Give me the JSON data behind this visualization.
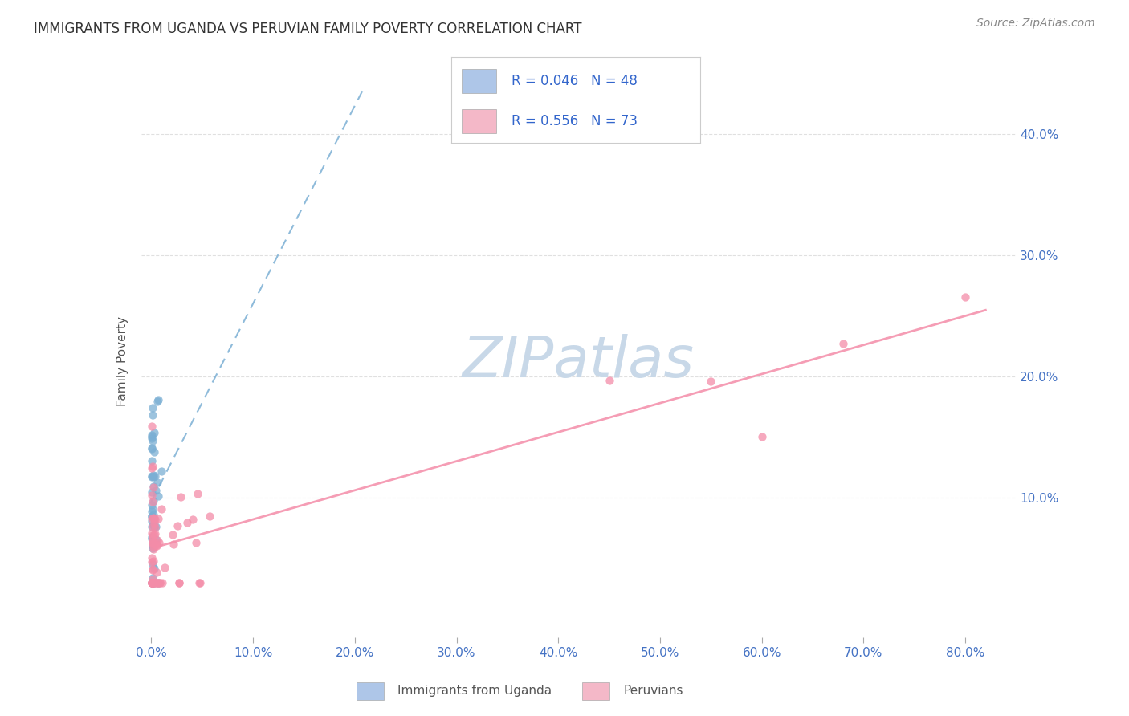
{
  "title": "IMMIGRANTS FROM UGANDA VS PERUVIAN FAMILY POVERTY CORRELATION CHART",
  "source": "Source: ZipAtlas.com",
  "ylabel": "Family Poverty",
  "series1_name": "Immigrants from Uganda",
  "series2_name": "Peruvians",
  "series1_color": "#7bafd4",
  "series2_color": "#f48ca8",
  "series1_legend_color": "#aec6e8",
  "series2_legend_color": "#f4b8c8",
  "trend1_color": "#7bafd4",
  "trend2_color": "#f48ca8",
  "watermark_color": "#c8d8e8",
  "background_color": "#ffffff",
  "grid_color": "#dddddd",
  "title_color": "#333333",
  "axis_label_color": "#4472c4",
  "legend_text_color": "#3366cc",
  "series1_R": 0.046,
  "series1_N": 48,
  "series2_R": 0.556,
  "series2_N": 73,
  "xlim": [
    -0.01,
    0.85
  ],
  "ylim": [
    -0.015,
    0.44
  ],
  "x_ticks": [
    0.0,
    0.1,
    0.2,
    0.3,
    0.4,
    0.5,
    0.6,
    0.7,
    0.8
  ],
  "y_ticks": [
    0.1,
    0.2,
    0.3,
    0.4
  ],
  "y_tick_labels": [
    "10.0%",
    "20.0%",
    "30.0%",
    "40.0%"
  ]
}
